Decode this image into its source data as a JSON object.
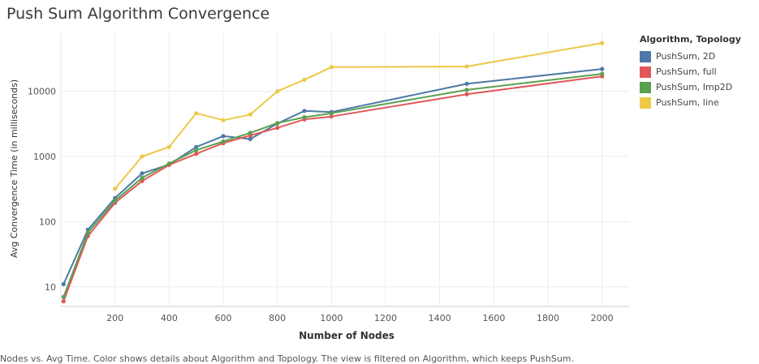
{
  "chart_data": {
    "type": "line",
    "title": "Push Sum Algorithm Convergence",
    "xlabel": "Number of Nodes",
    "ylabel": "Avg Convergence Time (in milliseconds)",
    "yscale": "log",
    "xlim": [
      0,
      2100
    ],
    "ylim": [
      5,
      80000
    ],
    "x_ticks": [
      200,
      400,
      600,
      800,
      1000,
      1200,
      1400,
      1600,
      1800,
      2000
    ],
    "y_ticks": [
      10,
      100,
      1000,
      10000
    ],
    "grid": true,
    "legend": {
      "title": "Algorithm, Topology",
      "placement": "right"
    },
    "x": [
      10,
      100,
      200,
      300,
      400,
      500,
      600,
      700,
      800,
      900,
      1000,
      1500,
      2000
    ],
    "series": [
      {
        "name": "PushSum, 2D",
        "color": "#4e79a7",
        "values": [
          11,
          75,
          230,
          550,
          750,
          1400,
          2050,
          1850,
          3200,
          5000,
          4800,
          13000,
          22000
        ]
      },
      {
        "name": "PushSum, full",
        "color": "#e15759",
        "values": [
          6,
          60,
          195,
          420,
          740,
          1100,
          1600,
          2100,
          2750,
          3700,
          4100,
          9000,
          17000
        ]
      },
      {
        "name": "PushSum, Imp2D",
        "color": "#59a14f",
        "values": [
          7,
          68,
          210,
          470,
          780,
          1250,
          1700,
          2300,
          3250,
          4000,
          4600,
          10500,
          18500
        ]
      },
      {
        "name": "PushSum, line",
        "color": "#edc948",
        "values": [
          null,
          null,
          320,
          1000,
          1400,
          4600,
          3600,
          4400,
          10000,
          15000,
          23500,
          24000,
          55000
        ]
      }
    ]
  },
  "footnote": "Nodes vs. Avg Time.  Color shows details about Algorithm and Topology. The view is filtered on Algorithm, which keeps PushSum."
}
